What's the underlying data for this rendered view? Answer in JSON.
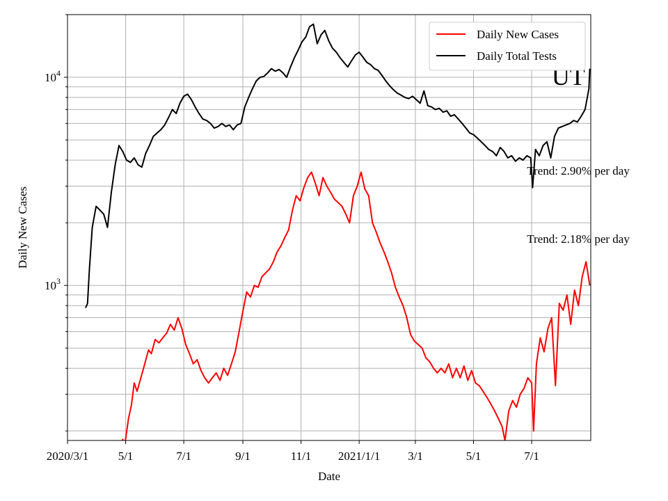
{
  "chart_data": {
    "type": "line",
    "title": "",
    "xlabel": "Date",
    "ylabel": "Daily New Cases",
    "yscale": "log",
    "ylim": [
      180,
      20000
    ],
    "xlim": [
      "2020-03-01",
      "2021-09-01"
    ],
    "grid": true,
    "legend_position": "top-right",
    "x_ticks": [
      {
        "date": "2020-03-01",
        "label": "2020/3/1"
      },
      {
        "date": "2020-05-01",
        "label": "5/1"
      },
      {
        "date": "2020-07-01",
        "label": "7/1"
      },
      {
        "date": "2020-09-01",
        "label": "9/1"
      },
      {
        "date": "2020-11-01",
        "label": "11/1"
      },
      {
        "date": "2021-01-01",
        "label": "2021/1/1"
      },
      {
        "date": "2021-03-01",
        "label": "3/1"
      },
      {
        "date": "2021-05-01",
        "label": "5/1"
      },
      {
        "date": "2021-07-01",
        "label": "7/1"
      }
    ],
    "y_ticks": [
      {
        "value": 1000,
        "base": "10",
        "exp": "3"
      },
      {
        "value": 10000,
        "base": "10",
        "exp": "4"
      }
    ],
    "series": [
      {
        "name": "Daily New Cases",
        "color": "#ff0000",
        "points": [
          [
            "2020-04-23",
            180
          ],
          [
            "2020-04-26",
            177
          ],
          [
            "2020-04-28",
            182
          ],
          [
            "2020-04-30",
            170
          ],
          [
            "2020-05-04",
            230
          ],
          [
            "2020-05-07",
            265
          ],
          [
            "2020-05-10",
            340
          ],
          [
            "2020-05-13",
            310
          ],
          [
            "2020-05-17",
            360
          ],
          [
            "2020-05-21",
            420
          ],
          [
            "2020-05-25",
            490
          ],
          [
            "2020-05-28",
            470
          ],
          [
            "2020-06-01",
            550
          ],
          [
            "2020-06-05",
            530
          ],
          [
            "2020-06-09",
            560
          ],
          [
            "2020-06-13",
            590
          ],
          [
            "2020-06-17",
            650
          ],
          [
            "2020-06-21",
            610
          ],
          [
            "2020-06-25",
            700
          ],
          [
            "2020-06-29",
            620
          ],
          [
            "2020-07-03",
            520
          ],
          [
            "2020-07-07",
            470
          ],
          [
            "2020-07-11",
            420
          ],
          [
            "2020-07-15",
            440
          ],
          [
            "2020-07-19",
            390
          ],
          [
            "2020-07-23",
            360
          ],
          [
            "2020-07-27",
            340
          ],
          [
            "2020-07-31",
            360
          ],
          [
            "2020-08-04",
            380
          ],
          [
            "2020-08-08",
            350
          ],
          [
            "2020-08-12",
            400
          ],
          [
            "2020-08-16",
            370
          ],
          [
            "2020-08-20",
            420
          ],
          [
            "2020-08-24",
            480
          ],
          [
            "2020-08-28",
            600
          ],
          [
            "2020-09-01",
            750
          ],
          [
            "2020-09-05",
            930
          ],
          [
            "2020-09-09",
            880
          ],
          [
            "2020-09-13",
            1000
          ],
          [
            "2020-09-17",
            980
          ],
          [
            "2020-09-21",
            1100
          ],
          [
            "2020-09-25",
            1150
          ],
          [
            "2020-09-29",
            1200
          ],
          [
            "2020-10-03",
            1300
          ],
          [
            "2020-10-07",
            1450
          ],
          [
            "2020-10-11",
            1550
          ],
          [
            "2020-10-15",
            1700
          ],
          [
            "2020-10-19",
            1850
          ],
          [
            "2020-10-23",
            2300
          ],
          [
            "2020-10-27",
            2700
          ],
          [
            "2020-10-31",
            2550
          ],
          [
            "2020-11-04",
            2950
          ],
          [
            "2020-11-08",
            3300
          ],
          [
            "2020-11-12",
            3500
          ],
          [
            "2020-11-16",
            3100
          ],
          [
            "2020-11-20",
            2700
          ],
          [
            "2020-11-24",
            3300
          ],
          [
            "2020-11-28",
            3000
          ],
          [
            "2020-12-02",
            2800
          ],
          [
            "2020-12-06",
            2600
          ],
          [
            "2020-12-10",
            2500
          ],
          [
            "2020-12-14",
            2400
          ],
          [
            "2020-12-18",
            2200
          ],
          [
            "2020-12-22",
            2000
          ],
          [
            "2020-12-26",
            2700
          ],
          [
            "2020-12-30",
            3000
          ],
          [
            "2021-01-03",
            3500
          ],
          [
            "2021-01-07",
            2900
          ],
          [
            "2021-01-11",
            2700
          ],
          [
            "2021-01-15",
            2000
          ],
          [
            "2021-01-19",
            1800
          ],
          [
            "2021-01-23",
            1600
          ],
          [
            "2021-01-27",
            1450
          ],
          [
            "2021-01-31",
            1300
          ],
          [
            "2021-02-04",
            1150
          ],
          [
            "2021-02-08",
            980
          ],
          [
            "2021-02-12",
            880
          ],
          [
            "2021-02-16",
            800
          ],
          [
            "2021-02-20",
            700
          ],
          [
            "2021-02-24",
            580
          ],
          [
            "2021-02-28",
            540
          ],
          [
            "2021-03-04",
            520
          ],
          [
            "2021-03-08",
            500
          ],
          [
            "2021-03-12",
            450
          ],
          [
            "2021-03-16",
            430
          ],
          [
            "2021-03-20",
            400
          ],
          [
            "2021-03-24",
            380
          ],
          [
            "2021-03-28",
            400
          ],
          [
            "2021-04-01",
            380
          ],
          [
            "2021-04-05",
            420
          ],
          [
            "2021-04-09",
            360
          ],
          [
            "2021-04-13",
            400
          ],
          [
            "2021-04-17",
            360
          ],
          [
            "2021-04-21",
            410
          ],
          [
            "2021-04-25",
            350
          ],
          [
            "2021-04-29",
            390
          ],
          [
            "2021-05-03",
            340
          ],
          [
            "2021-05-07",
            330
          ],
          [
            "2021-05-11",
            310
          ],
          [
            "2021-05-15",
            290
          ],
          [
            "2021-05-19",
            270
          ],
          [
            "2021-05-23",
            250
          ],
          [
            "2021-05-27",
            230
          ],
          [
            "2021-05-31",
            210
          ],
          [
            "2021-06-03",
            180
          ],
          [
            "2021-06-07",
            250
          ],
          [
            "2021-06-11",
            280
          ],
          [
            "2021-06-15",
            260
          ],
          [
            "2021-06-19",
            300
          ],
          [
            "2021-06-23",
            320
          ],
          [
            "2021-06-27",
            360
          ],
          [
            "2021-07-01",
            340
          ],
          [
            "2021-07-03",
            200
          ],
          [
            "2021-07-06",
            420
          ],
          [
            "2021-07-10",
            560
          ],
          [
            "2021-07-14",
            480
          ],
          [
            "2021-07-18",
            620
          ],
          [
            "2021-07-22",
            700
          ],
          [
            "2021-07-26",
            330
          ],
          [
            "2021-07-30",
            820
          ],
          [
            "2021-08-03",
            760
          ],
          [
            "2021-08-07",
            900
          ],
          [
            "2021-08-11",
            650
          ],
          [
            "2021-08-15",
            950
          ],
          [
            "2021-08-19",
            800
          ],
          [
            "2021-08-23",
            1100
          ],
          [
            "2021-08-27",
            1300
          ],
          [
            "2021-08-31",
            1000
          ]
        ]
      },
      {
        "name": "Daily Total Tests",
        "color": "#000000",
        "points": [
          [
            "2020-03-20",
            780
          ],
          [
            "2020-03-22",
            820
          ],
          [
            "2020-03-24",
            1200
          ],
          [
            "2020-03-27",
            1900
          ],
          [
            "2020-03-31",
            2400
          ],
          [
            "2020-04-04",
            2300
          ],
          [
            "2020-04-08",
            2200
          ],
          [
            "2020-04-12",
            1900
          ],
          [
            "2020-04-16",
            2800
          ],
          [
            "2020-04-20",
            3800
          ],
          [
            "2020-04-24",
            4700
          ],
          [
            "2020-04-28",
            4400
          ],
          [
            "2020-05-02",
            4000
          ],
          [
            "2020-05-06",
            3900
          ],
          [
            "2020-05-10",
            4100
          ],
          [
            "2020-05-14",
            3800
          ],
          [
            "2020-05-18",
            3700
          ],
          [
            "2020-05-22",
            4300
          ],
          [
            "2020-05-26",
            4700
          ],
          [
            "2020-05-30",
            5200
          ],
          [
            "2020-06-03",
            5400
          ],
          [
            "2020-06-07",
            5600
          ],
          [
            "2020-06-11",
            5900
          ],
          [
            "2020-06-15",
            6400
          ],
          [
            "2020-06-19",
            7000
          ],
          [
            "2020-06-23",
            6700
          ],
          [
            "2020-06-27",
            7500
          ],
          [
            "2020-07-01",
            8100
          ],
          [
            "2020-07-05",
            8300
          ],
          [
            "2020-07-09",
            7800
          ],
          [
            "2020-07-13",
            7200
          ],
          [
            "2020-07-17",
            6700
          ],
          [
            "2020-07-21",
            6300
          ],
          [
            "2020-07-25",
            6200
          ],
          [
            "2020-07-29",
            6000
          ],
          [
            "2020-08-02",
            5700
          ],
          [
            "2020-08-06",
            5800
          ],
          [
            "2020-08-10",
            6000
          ],
          [
            "2020-08-14",
            5800
          ],
          [
            "2020-08-18",
            5900
          ],
          [
            "2020-08-22",
            5600
          ],
          [
            "2020-08-26",
            5900
          ],
          [
            "2020-08-30",
            6000
          ],
          [
            "2020-09-03",
            7200
          ],
          [
            "2020-09-07",
            8000
          ],
          [
            "2020-09-11",
            8800
          ],
          [
            "2020-09-15",
            9600
          ],
          [
            "2020-09-19",
            10000
          ],
          [
            "2020-09-23",
            10100
          ],
          [
            "2020-09-27",
            10500
          ],
          [
            "2020-10-01",
            11000
          ],
          [
            "2020-10-05",
            10700
          ],
          [
            "2020-10-09",
            10900
          ],
          [
            "2020-10-13",
            10500
          ],
          [
            "2020-10-17",
            10000
          ],
          [
            "2020-10-21",
            11200
          ],
          [
            "2020-10-25",
            12400
          ],
          [
            "2020-10-29",
            13500
          ],
          [
            "2020-11-02",
            14800
          ],
          [
            "2020-11-06",
            15600
          ],
          [
            "2020-11-10",
            17500
          ],
          [
            "2020-11-14",
            18000
          ],
          [
            "2020-11-18",
            14500
          ],
          [
            "2020-11-22",
            16000
          ],
          [
            "2020-11-26",
            16800
          ],
          [
            "2020-11-30",
            15000
          ],
          [
            "2020-12-04",
            13800
          ],
          [
            "2020-12-08",
            13200
          ],
          [
            "2020-12-12",
            12400
          ],
          [
            "2020-12-16",
            11800
          ],
          [
            "2020-12-20",
            11200
          ],
          [
            "2020-12-24",
            12000
          ],
          [
            "2020-12-28",
            12800
          ],
          [
            "2021-01-01",
            13200
          ],
          [
            "2021-01-05",
            12500
          ],
          [
            "2021-01-09",
            11800
          ],
          [
            "2021-01-13",
            11500
          ],
          [
            "2021-01-17",
            11000
          ],
          [
            "2021-01-21",
            10800
          ],
          [
            "2021-01-25",
            10200
          ],
          [
            "2021-01-29",
            9600
          ],
          [
            "2021-02-02",
            9100
          ],
          [
            "2021-02-06",
            8700
          ],
          [
            "2021-02-10",
            8400
          ],
          [
            "2021-02-14",
            8200
          ],
          [
            "2021-02-18",
            8000
          ],
          [
            "2021-02-22",
            7900
          ],
          [
            "2021-02-26",
            8100
          ],
          [
            "2021-03-02",
            7800
          ],
          [
            "2021-03-06",
            7500
          ],
          [
            "2021-03-10",
            8600
          ],
          [
            "2021-03-14",
            7300
          ],
          [
            "2021-03-18",
            7200
          ],
          [
            "2021-03-22",
            7000
          ],
          [
            "2021-03-26",
            7100
          ],
          [
            "2021-03-30",
            6800
          ],
          [
            "2021-04-03",
            6900
          ],
          [
            "2021-04-07",
            6500
          ],
          [
            "2021-04-11",
            6600
          ],
          [
            "2021-04-15",
            6300
          ],
          [
            "2021-04-19",
            6000
          ],
          [
            "2021-04-23",
            5700
          ],
          [
            "2021-04-27",
            5400
          ],
          [
            "2021-05-01",
            5300
          ],
          [
            "2021-05-05",
            5100
          ],
          [
            "2021-05-09",
            4900
          ],
          [
            "2021-05-13",
            4700
          ],
          [
            "2021-05-17",
            4500
          ],
          [
            "2021-05-21",
            4400
          ],
          [
            "2021-05-25",
            4200
          ],
          [
            "2021-05-29",
            4600
          ],
          [
            "2021-06-02",
            4400
          ],
          [
            "2021-06-06",
            4100
          ],
          [
            "2021-06-10",
            4200
          ],
          [
            "2021-06-14",
            3950
          ],
          [
            "2021-06-18",
            4100
          ],
          [
            "2021-06-22",
            4000
          ],
          [
            "2021-06-26",
            4200
          ],
          [
            "2021-06-30",
            4100
          ],
          [
            "2021-07-02",
            2950
          ],
          [
            "2021-07-05",
            4500
          ],
          [
            "2021-07-09",
            4200
          ],
          [
            "2021-07-13",
            4700
          ],
          [
            "2021-07-17",
            4900
          ],
          [
            "2021-07-21",
            4100
          ],
          [
            "2021-07-25",
            5200
          ],
          [
            "2021-07-29",
            5700
          ],
          [
            "2021-08-02",
            5800
          ],
          [
            "2021-08-06",
            5900
          ],
          [
            "2021-08-10",
            6000
          ],
          [
            "2021-08-14",
            6200
          ],
          [
            "2021-08-18",
            6100
          ],
          [
            "2021-08-22",
            6500
          ],
          [
            "2021-08-26",
            7000
          ],
          [
            "2021-08-30",
            8800
          ],
          [
            "2021-08-31",
            11000
          ]
        ]
      }
    ],
    "legend": [
      "Daily New Cases",
      "Daily Total Tests"
    ],
    "annotations": [
      {
        "text": "Trend: 2.90% per day",
        "date": "2021-06-26",
        "value": 3400
      },
      {
        "text": "Trend: 2.18% per day",
        "date": "2021-06-26",
        "value": 1600
      },
      {
        "text": "UT",
        "date": "2021-07-22",
        "value": 9200
      }
    ]
  }
}
